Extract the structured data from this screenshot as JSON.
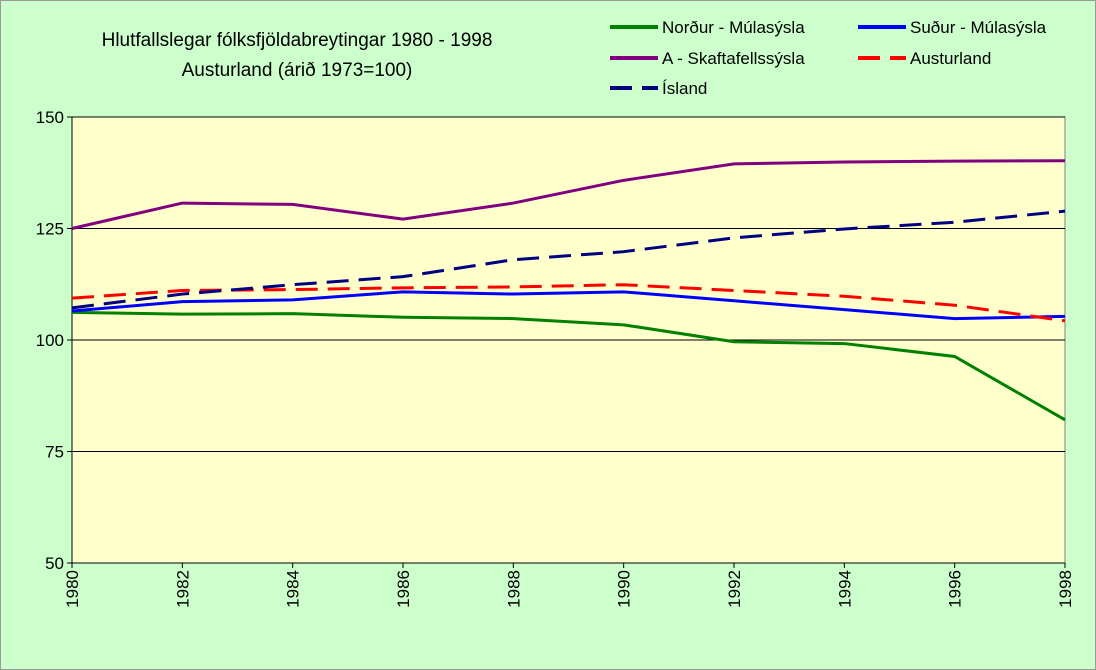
{
  "chart_data": {
    "type": "line",
    "title": [
      "Hlutfallslegar fólksfjöldabreytingar 1980 - 1998",
      "Austurland (árið 1973=100)"
    ],
    "x": [
      1980,
      1982,
      1984,
      1986,
      1988,
      1990,
      1992,
      1994,
      1996,
      1998
    ],
    "xlim": [
      1980,
      1998
    ],
    "xticks": [
      1980,
      1982,
      1984,
      1986,
      1988,
      1990,
      1992,
      1994,
      1996,
      1998
    ],
    "ylim": [
      50,
      150
    ],
    "yticks": [
      50,
      75,
      100,
      125,
      150
    ],
    "grid": true,
    "legend": "top-right",
    "series": [
      {
        "name": "Norður - Múlasýsla",
        "color": "#008000",
        "dash": false,
        "values": [
          106.2,
          105.8,
          105.9,
          105.1,
          104.8,
          103.4,
          99.6,
          99.2,
          96.3,
          82.1
        ]
      },
      {
        "name": "Suður - Múlasýsla",
        "color": "#0000ff",
        "dash": false,
        "values": [
          106.5,
          108.6,
          109.0,
          110.8,
          110.3,
          110.8,
          108.8,
          106.8,
          104.8,
          105.3
        ]
      },
      {
        "name": "A - Skaftafellssýsla",
        "color": "#800080",
        "dash": false,
        "values": [
          125.0,
          130.7,
          130.4,
          127.1,
          130.7,
          135.8,
          139.5,
          139.9,
          140.1,
          140.2
        ]
      },
      {
        "name": "Austurland",
        "color": "#ff0000",
        "dash": true,
        "values": [
          109.4,
          111.1,
          111.3,
          111.7,
          111.9,
          112.4,
          111.1,
          109.8,
          107.8,
          104.3
        ]
      },
      {
        "name": "Ísland",
        "color": "#000080",
        "dash": true,
        "values": [
          107.2,
          110.3,
          112.4,
          114.2,
          118.0,
          119.8,
          122.9,
          124.9,
          126.4,
          128.9
        ]
      }
    ]
  }
}
